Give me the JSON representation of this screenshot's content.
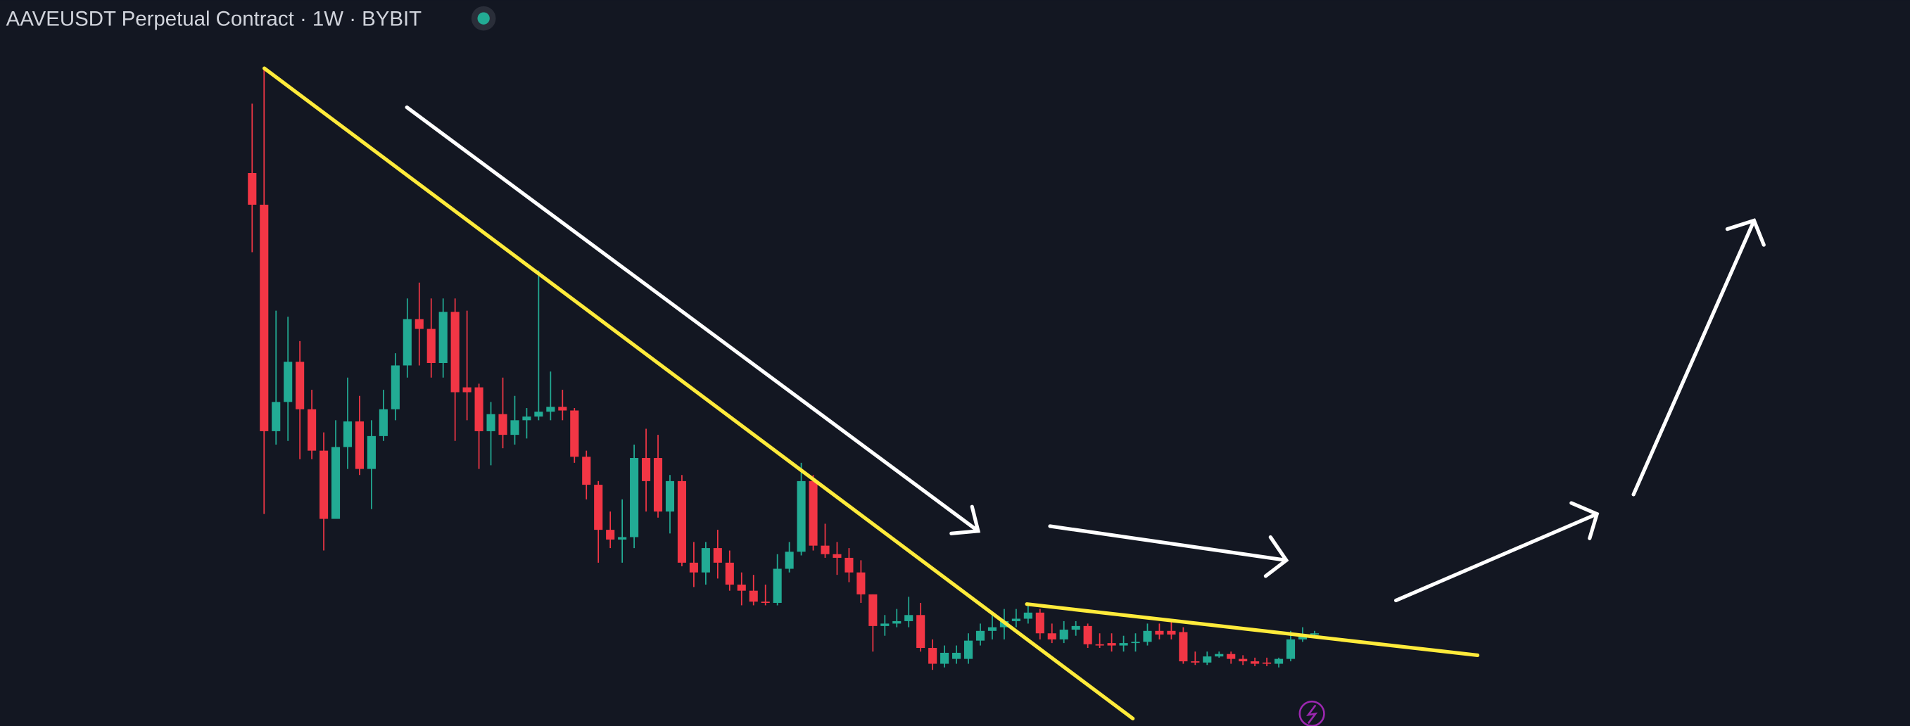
{
  "chart_data": {
    "type": "candlestick",
    "title": "AAVEUSDT Perpetual Contract · 1W · BYBIT",
    "up_color": "#22ab94",
    "down_color": "#f23645",
    "ylim": [
      0,
      596
    ],
    "open": [
      454,
      428,
      242,
      266,
      299,
      260,
      226,
      170,
      229,
      250,
      211,
      238,
      260,
      296,
      334,
      326,
      298,
      340,
      278,
      278,
      242,
      256,
      239,
      251,
      254,
      258,
      262,
      259,
      221,
      198,
      161,
      153,
      155,
      220,
      220,
      176,
      201,
      134,
      126,
      146,
      134,
      116,
      111,
      102,
      101,
      129,
      143,
      201,
      148,
      141,
      138,
      126,
      108,
      82,
      84,
      86,
      91,
      64,
      51,
      55,
      55,
      70,
      78,
      81,
      86,
      88,
      93,
      76,
      71,
      79,
      82,
      67,
      68,
      66,
      68,
      69,
      78,
      78,
      77,
      53,
      52,
      57,
      59,
      55,
      53,
      52,
      51,
      55,
      71,
      75
    ],
    "high": [
      511,
      539,
      341,
      336,
      316,
      276,
      241,
      251,
      286,
      271,
      251,
      276,
      306,
      351,
      364,
      351,
      351,
      351,
      341,
      281,
      266,
      286,
      271,
      261,
      374,
      291,
      276,
      261,
      226,
      201,
      176,
      186,
      231,
      244,
      239,
      206,
      206,
      151,
      151,
      161,
      144,
      126,
      124,
      116,
      141,
      151,
      216,
      206,
      166,
      151,
      146,
      136,
      108,
      91,
      96,
      106,
      101,
      71,
      66,
      66,
      76,
      84,
      91,
      96,
      96,
      101,
      96,
      84,
      86,
      86,
      84,
      76,
      76,
      74,
      76,
      84,
      84,
      86,
      81,
      61,
      61,
      61,
      61,
      58,
      56,
      56,
      56,
      78,
      81,
      78
    ],
    "low": [
      389,
      174,
      231,
      234,
      219,
      219,
      144,
      170,
      211,
      206,
      178,
      234,
      251,
      286,
      296,
      286,
      286,
      234,
      251,
      211,
      214,
      228,
      231,
      236,
      251,
      251,
      251,
      216,
      186,
      134,
      146,
      134,
      146,
      176,
      171,
      158,
      131,
      114,
      116,
      121,
      111,
      99,
      99,
      99,
      99,
      126,
      140,
      144,
      138,
      124,
      118,
      101,
      61,
      74,
      81,
      81,
      61,
      46,
      48,
      51,
      51,
      66,
      71,
      71,
      81,
      84,
      71,
      68,
      68,
      74,
      64,
      64,
      61,
      61,
      61,
      66,
      71,
      71,
      51,
      50,
      50,
      56,
      51,
      50,
      49,
      49,
      48,
      53,
      69,
      73
    ],
    "close": [
      428,
      242,
      266,
      299,
      260,
      226,
      170,
      229,
      250,
      211,
      238,
      260,
      296,
      334,
      326,
      298,
      340,
      274,
      274,
      242,
      256,
      239,
      251,
      254,
      258,
      262,
      259,
      221,
      198,
      161,
      153,
      155,
      220,
      201,
      176,
      201,
      134,
      126,
      146,
      134,
      116,
      111,
      102,
      101,
      129,
      143,
      201,
      148,
      141,
      138,
      126,
      108,
      82,
      84,
      86,
      91,
      64,
      51,
      60,
      60,
      70,
      78,
      81,
      86,
      88,
      93,
      76,
      71,
      79,
      82,
      67,
      66,
      66,
      68,
      69,
      78,
      75,
      75,
      53,
      52,
      57,
      59,
      55,
      53,
      51,
      51,
      55,
      71,
      75,
      76
    ]
  }
}
